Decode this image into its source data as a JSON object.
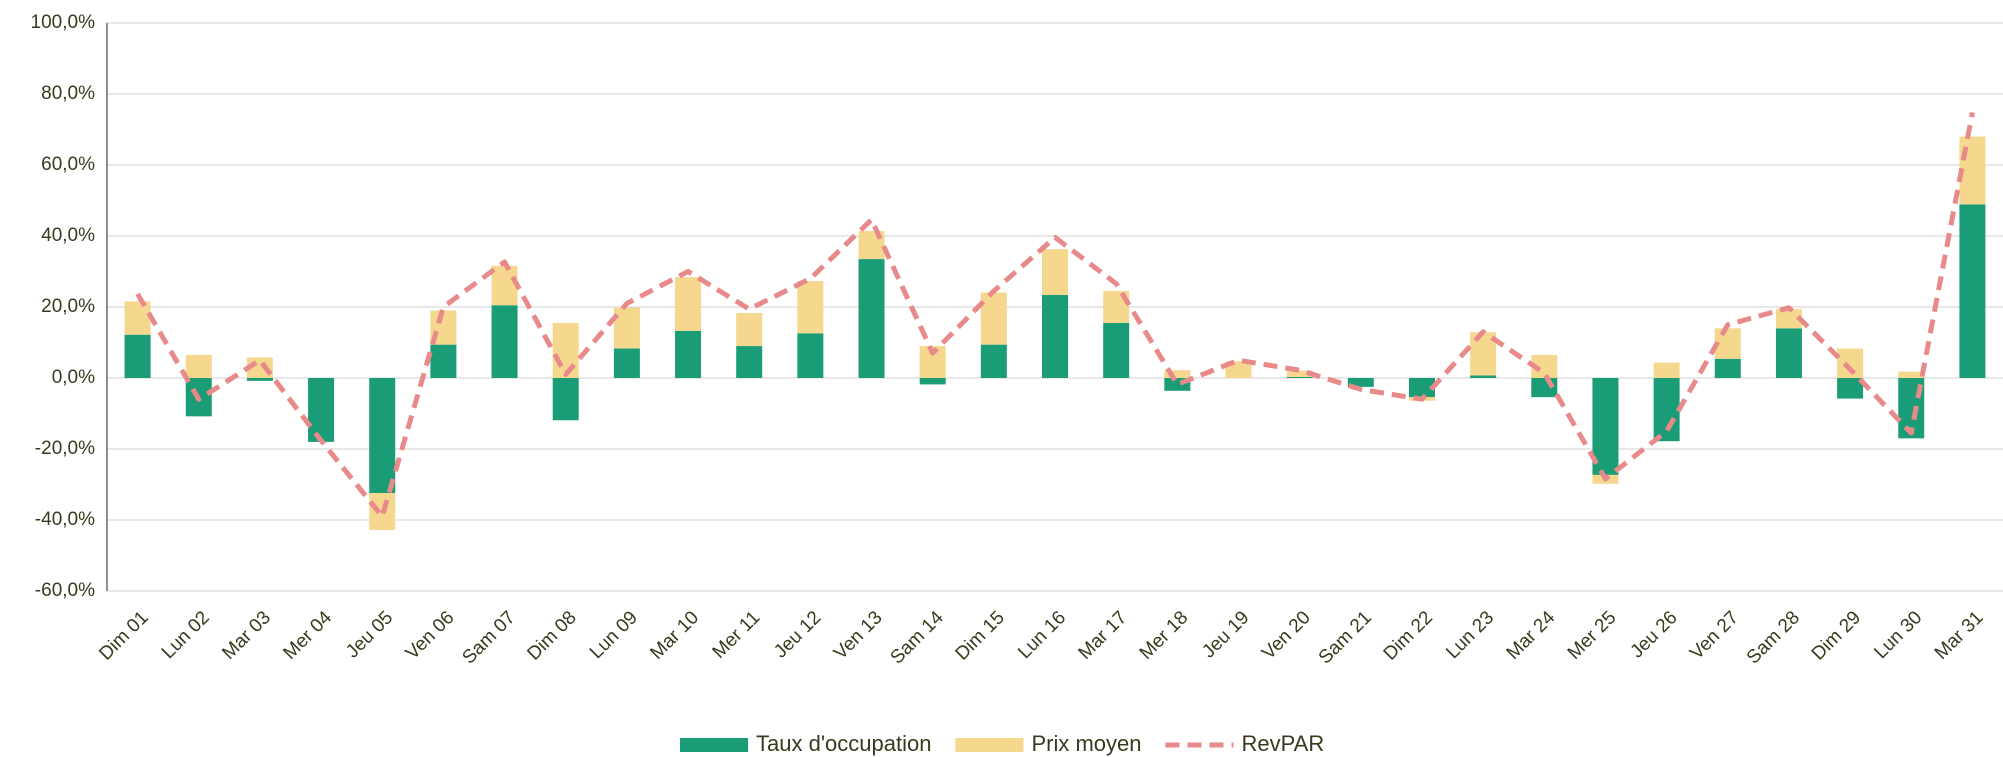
{
  "chart_data": {
    "type": "bar",
    "categories": [
      "Dim 01",
      "Lun 02",
      "Mar 03",
      "Mer 04",
      "Jeu 05",
      "Ven 06",
      "Sam 07",
      "Dim 08",
      "Lun 09",
      "Mar 10",
      "Mer 11",
      "Jeu 12",
      "Ven 13",
      "Sam 14",
      "Dim 15",
      "Lun 16",
      "Mar 17",
      "Mer 18",
      "Jeu 19",
      "Ven 20",
      "Sam 21",
      "Dim 22",
      "Lun 23",
      "Mar 24",
      "Mer 25",
      "Jeu 26",
      "Ven 27",
      "Sam 28",
      "Dim 29",
      "Lun 30",
      "Mar 31"
    ],
    "series": [
      {
        "name": "Taux d'occupation",
        "type": "bar",
        "color": "#1a9c76",
        "values": [
          12.2,
          -10.8,
          -0.8,
          -18,
          -32.4,
          9.4,
          20.5,
          -11.9,
          8.3,
          13.3,
          9,
          12.6,
          33.5,
          -1.8,
          9.4,
          23.4,
          15.5,
          -3.6,
          0,
          0.3,
          -2.5,
          -5.4,
          0.7,
          -5.4,
          -27.3,
          -17.8,
          5.4,
          14,
          -5.8,
          -17,
          48.9
        ]
      },
      {
        "name": "Prix moyen",
        "type": "bar",
        "color": "#f5d78e",
        "values": [
          9.4,
          6.5,
          5.8,
          0,
          -10.4,
          9.6,
          11.1,
          15.5,
          11.5,
          15.1,
          9.3,
          14.7,
          7.9,
          9,
          14.7,
          12.9,
          9,
          2.2,
          4.7,
          1.8,
          0,
          -1,
          12.2,
          6.5,
          -2.5,
          4.3,
          8.6,
          5.4,
          8.3,
          1.8,
          19.1
        ]
      },
      {
        "name": "RevPAR",
        "type": "line",
        "color": "#e88a8a",
        "values": [
          23.7,
          -6,
          5,
          -17.6,
          -39,
          20,
          32.7,
          1,
          21,
          30,
          19.4,
          28,
          44.6,
          7,
          24.5,
          39.6,
          26.6,
          -1.8,
          5,
          2.2,
          -3.2,
          -6,
          13,
          1.4,
          -28.4,
          -15,
          15,
          19.8,
          2.5,
          -15.5,
          74.8
        ]
      }
    ],
    "ylim": [
      -60,
      100
    ],
    "yticks": [
      {
        "value": -60,
        "label": "-60,0%"
      },
      {
        "value": -40,
        "label": "-40,0%"
      },
      {
        "value": -20,
        "label": "-20,0%"
      },
      {
        "value": 0,
        "label": "0,0%"
      },
      {
        "value": 20,
        "label": "20,0%"
      },
      {
        "value": 40,
        "label": "40,0%"
      },
      {
        "value": 60,
        "label": "60,0%"
      },
      {
        "value": 80,
        "label": "80,0%"
      },
      {
        "value": 100,
        "label": "100,0%"
      }
    ],
    "grid": true,
    "legend": "bottom"
  }
}
